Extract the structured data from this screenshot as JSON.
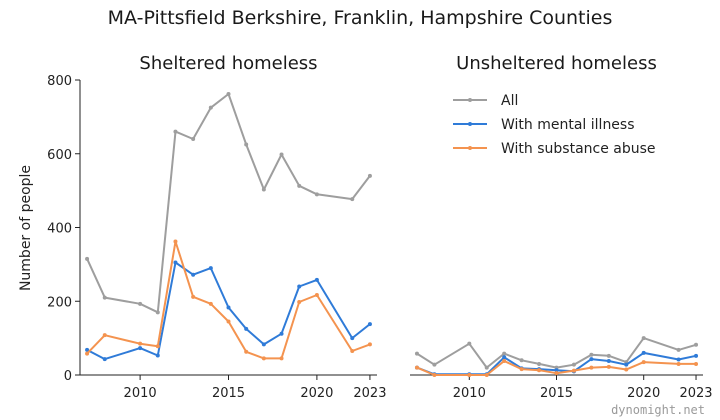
{
  "chart_data": {
    "type": "line",
    "title": "MA-Pittsfield Berkshire, Franklin, Hampshire Counties",
    "ylabel": "Number of people",
    "ylim": [
      0,
      800
    ],
    "yticks": [
      0,
      200,
      400,
      600,
      800
    ],
    "xlim": [
      2006.6,
      2023.4
    ],
    "xticks": [
      2010,
      2015,
      2020,
      2023
    ],
    "grid": false,
    "legend_position": "top-right",
    "watermark": "dynomight.net",
    "colors": {
      "All": "#9e9e9e",
      "With mental illness": "#2f7bd8",
      "With substance abuse": "#f4934f"
    },
    "panels": [
      {
        "title": "Sheltered homeless",
        "x": [
          2007,
          2008,
          2010,
          2011,
          2012,
          2013,
          2014,
          2015,
          2016,
          2017,
          2018,
          2019,
          2020,
          2022,
          2023
        ],
        "series": [
          {
            "name": "All",
            "values": [
              315,
              210,
              193,
              170,
              660,
              640,
              725,
              762,
              625,
              503,
              598,
              513,
              490,
              477,
              540
            ]
          },
          {
            "name": "With mental illness",
            "values": [
              68,
              43,
              73,
              53,
              305,
              272,
              290,
              183,
              125,
              83,
              112,
              240,
              258,
              100,
              138
            ]
          },
          {
            "name": "With substance abuse",
            "values": [
              58,
              108,
              85,
              78,
              362,
              212,
              193,
              145,
              63,
              45,
              45,
              198,
              217,
              65,
              83
            ]
          }
        ]
      },
      {
        "title": "Unsheltered homeless",
        "x": [
          2007,
          2008,
          2010,
          2011,
          2012,
          2013,
          2014,
          2015,
          2016,
          2017,
          2018,
          2019,
          2020,
          2022,
          2023
        ],
        "series": [
          {
            "name": "All",
            "values": [
              58,
              28,
              85,
              20,
              58,
              40,
              30,
              20,
              28,
              55,
              52,
              35,
              100,
              68,
              82
            ]
          },
          {
            "name": "With mental illness",
            "values": [
              20,
              2,
              2,
              2,
              48,
              18,
              16,
              13,
              10,
              43,
              38,
              28,
              60,
              42,
              52
            ]
          },
          {
            "name": "With substance abuse",
            "values": [
              20,
              0,
              0,
              0,
              38,
              16,
              13,
              5,
              12,
              20,
              22,
              15,
              35,
              30,
              30
            ]
          }
        ]
      }
    ]
  }
}
